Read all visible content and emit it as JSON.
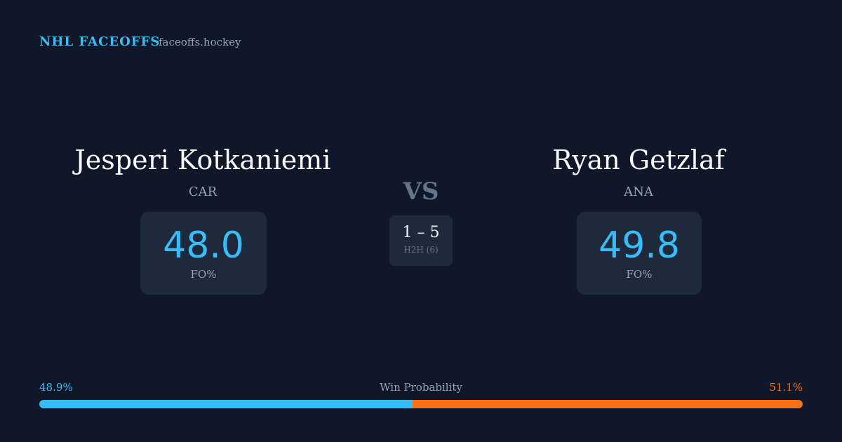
{
  "header": {
    "brand": "NHL FACEOFFS",
    "site": "faceoffs.hockey"
  },
  "players": [
    {
      "name": "Jesperi Kotkaniemi",
      "team": "CAR",
      "fo_pct": "48.0",
      "fo_label": "FO%"
    },
    {
      "name": "Ryan Getzlaf",
      "team": "ANA",
      "fo_pct": "49.8",
      "fo_label": "FO%"
    }
  ],
  "versus": "VS",
  "h2h": {
    "score": "1 – 5",
    "label": "H2H (6)"
  },
  "win_probability": {
    "title": "Win Probability",
    "values": [
      48.9,
      51.1
    ],
    "value_labels": [
      "48.9%",
      "51.1%"
    ],
    "colors": [
      "#38bdf8",
      "#f97316"
    ]
  }
}
